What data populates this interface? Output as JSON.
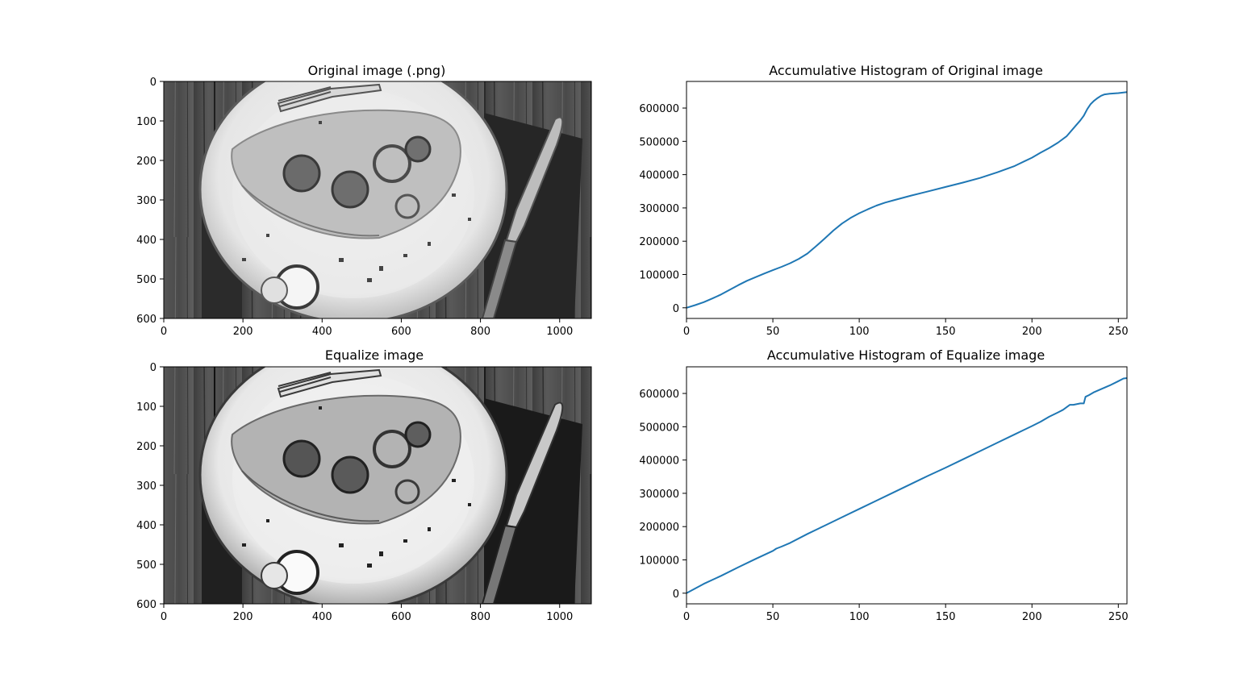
{
  "colors": {
    "line": "#1f77b4",
    "axes": "#000000",
    "background": "#ffffff"
  },
  "panels": {
    "original_image": {
      "title": "Original image (.png)",
      "x_ticks": [
        "0",
        "200",
        "400",
        "600",
        "800",
        "1000"
      ],
      "y_ticks": [
        "0",
        "100",
        "200",
        "300",
        "400",
        "500",
        "600"
      ]
    },
    "equalized_image": {
      "title": "Equalize image",
      "x_ticks": [
        "0",
        "200",
        "400",
        "600",
        "800",
        "1000"
      ],
      "y_ticks": [
        "0",
        "100",
        "200",
        "300",
        "400",
        "500",
        "600"
      ]
    }
  },
  "chart_data": [
    {
      "type": "line",
      "title": "Accumulative Histogram of Original image",
      "xlabel": "",
      "ylabel": "",
      "xlim": [
        0,
        255
      ],
      "ylim": [
        -32000,
        680000
      ],
      "x_ticks": [
        "0",
        "50",
        "100",
        "150",
        "200",
        "250"
      ],
      "y_ticks": [
        "0",
        "100000",
        "200000",
        "300000",
        "400000",
        "500000",
        "600000"
      ],
      "grid": false,
      "series": [
        {
          "x": [
            0,
            5,
            10,
            15,
            20,
            25,
            30,
            35,
            40,
            45,
            50,
            55,
            60,
            65,
            70,
            75,
            80,
            85,
            90,
            95,
            100,
            105,
            110,
            115,
            120,
            130,
            140,
            150,
            160,
            170,
            180,
            190,
            200,
            205,
            210,
            215,
            220,
            225,
            228,
            230,
            232,
            234,
            236,
            238,
            240,
            242,
            245,
            250,
            255
          ],
          "y": [
            0,
            8000,
            17000,
            28000,
            40000,
            54000,
            68000,
            81000,
            92000,
            103000,
            113000,
            123000,
            134000,
            147000,
            163000,
            185000,
            208000,
            232000,
            253000,
            270000,
            284000,
            296000,
            307000,
            316000,
            323000,
            337000,
            350000,
            363000,
            376000,
            390000,
            407000,
            426000,
            451000,
            466000,
            480000,
            496000,
            515000,
            545000,
            563000,
            577000,
            597000,
            612000,
            622000,
            630000,
            637000,
            641000,
            643000,
            645000,
            648000
          ]
        }
      ]
    },
    {
      "type": "line",
      "title": "Accumulative Histogram of Equalize image",
      "xlabel": "",
      "ylabel": "",
      "xlim": [
        0,
        255
      ],
      "ylim": [
        -32000,
        680000
      ],
      "x_ticks": [
        "0",
        "50",
        "100",
        "150",
        "200",
        "250"
      ],
      "y_ticks": [
        "0",
        "100000",
        "200000",
        "300000",
        "400000",
        "500000",
        "600000"
      ],
      "grid": false,
      "series": [
        {
          "x": [
            0,
            10,
            20,
            30,
            40,
            50,
            52,
            55,
            60,
            70,
            80,
            90,
            100,
            110,
            120,
            130,
            140,
            150,
            160,
            170,
            180,
            190,
            200,
            205,
            210,
            215,
            218,
            222,
            224,
            228,
            230,
            231,
            233,
            236,
            240,
            245,
            250,
            253,
            255
          ],
          "y": [
            0,
            28000,
            52000,
            78000,
            103000,
            127000,
            134000,
            140000,
            151000,
            178000,
            203000,
            228000,
            253000,
            278000,
            303000,
            328000,
            353000,
            377000,
            402000,
            427000,
            452000,
            477000,
            502000,
            515000,
            530000,
            543000,
            551000,
            566000,
            566000,
            570000,
            570000,
            590000,
            595000,
            604000,
            613000,
            624000,
            637000,
            645000,
            646000
          ]
        }
      ]
    }
  ]
}
